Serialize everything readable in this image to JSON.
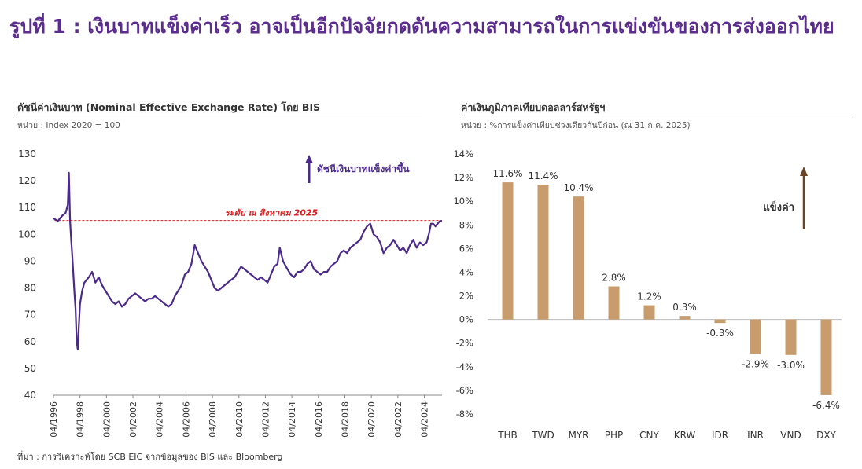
{
  "title": "รูปที่ 1 : เงินบาทแข็งค่าเร็ว อาจเป็นอีกปัจจัยกดดันความสามารถในการแข่งขันของการส่งออกไทย",
  "source": "ที่มา : การวิเคราะห์โดย SCB EIC จากข้อมูลของ BIS และ Bloomberg",
  "colors": {
    "title": "#5b2d8e",
    "neer_line": "#4b2a8c",
    "bar": "#c99c6e",
    "arrow": "#6b4423",
    "ref_line": "#e02020"
  },
  "chart_data": [
    {
      "type": "line",
      "title": "ดัชนีค่าเงินบาท (Nominal Effective Exchange Rate) โดย BIS",
      "subtitle": "หน่วย : Index 2020 = 100",
      "xlabel": "",
      "ylabel": "",
      "ylim": [
        40,
        130
      ],
      "yticks": [
        40,
        50,
        60,
        70,
        80,
        90,
        100,
        110,
        120,
        130
      ],
      "xlim": [
        "1996-04",
        "2025-08"
      ],
      "xtick_labels": [
        "04/1996",
        "04/1998",
        "04/2000",
        "04/2002",
        "04/2004",
        "04/2006",
        "04/2008",
        "04/2010",
        "04/2012",
        "04/2014",
        "04/2016",
        "04/2018",
        "04/2020",
        "04/2022",
        "04/2024"
      ],
      "grid": false,
      "series": [
        {
          "color": "#4b2a8c",
          "x": [
            "1996-04",
            "1996-08",
            "1996-12",
            "1997-03",
            "1997-05",
            "1997-06",
            "1997-07",
            "1997-08",
            "1997-09",
            "1997-10",
            "1997-11",
            "1997-12",
            "1998-01",
            "1998-02",
            "1998-03",
            "1998-04",
            "1998-06",
            "1998-08",
            "1998-10",
            "1998-12",
            "1999-03",
            "1999-06",
            "1999-09",
            "1999-12",
            "2000-03",
            "2000-06",
            "2000-09",
            "2000-12",
            "2001-03",
            "2001-06",
            "2001-09",
            "2001-12",
            "2002-03",
            "2002-06",
            "2002-09",
            "2002-12",
            "2003-03",
            "2003-06",
            "2003-09",
            "2003-12",
            "2004-03",
            "2004-06",
            "2004-09",
            "2004-12",
            "2005-03",
            "2005-06",
            "2005-09",
            "2005-12",
            "2006-03",
            "2006-06",
            "2006-09",
            "2006-12",
            "2007-03",
            "2007-06",
            "2007-09",
            "2007-12",
            "2008-03",
            "2008-06",
            "2008-09",
            "2008-12",
            "2009-03",
            "2009-06",
            "2009-09",
            "2009-12",
            "2010-03",
            "2010-06",
            "2010-09",
            "2010-12",
            "2011-03",
            "2011-06",
            "2011-09",
            "2011-12",
            "2012-03",
            "2012-06",
            "2012-09",
            "2012-12",
            "2013-03",
            "2013-05",
            "2013-08",
            "2013-12",
            "2014-03",
            "2014-06",
            "2014-09",
            "2014-12",
            "2015-03",
            "2015-06",
            "2015-09",
            "2015-12",
            "2016-03",
            "2016-06",
            "2016-09",
            "2016-12",
            "2017-03",
            "2017-06",
            "2017-09",
            "2017-12",
            "2018-03",
            "2018-06",
            "2018-09",
            "2018-12",
            "2019-03",
            "2019-06",
            "2019-09",
            "2019-12",
            "2020-03",
            "2020-06",
            "2020-09",
            "2020-12",
            "2021-03",
            "2021-06",
            "2021-09",
            "2021-12",
            "2022-03",
            "2022-06",
            "2022-09",
            "2022-12",
            "2023-03",
            "2023-06",
            "2023-09",
            "2023-12",
            "2024-03",
            "2024-06",
            "2024-08",
            "2024-10",
            "2024-12",
            "2025-02",
            "2025-04",
            "2025-06",
            "2025-08"
          ],
          "values": [
            106,
            105,
            107,
            108,
            111,
            123,
            105,
            98,
            92,
            85,
            78,
            72,
            60,
            57,
            66,
            74,
            79,
            82,
            83,
            84,
            86,
            82,
            84,
            81,
            79,
            77,
            75,
            74,
            75,
            73,
            74,
            76,
            77,
            78,
            77,
            76,
            75,
            76,
            76,
            77,
            76,
            75,
            74,
            73,
            74,
            77,
            79,
            81,
            85,
            86,
            89,
            96,
            93,
            90,
            88,
            86,
            83,
            80,
            79,
            80,
            81,
            82,
            83,
            84,
            86,
            88,
            87,
            86,
            85,
            84,
            83,
            84,
            83,
            82,
            85,
            88,
            89,
            95,
            90,
            87,
            85,
            84,
            86,
            86,
            87,
            89,
            90,
            87,
            86,
            85,
            86,
            86,
            88,
            89,
            90,
            93,
            94,
            93,
            95,
            96,
            97,
            98,
            101,
            103,
            104,
            100,
            99,
            97,
            93,
            95,
            96,
            98,
            96,
            94,
            95,
            93,
            96,
            98,
            95,
            97,
            96,
            97,
            100,
            104,
            104,
            103,
            104,
            105,
            105
          ]
        }
      ],
      "annotations": [
        {
          "text": "ดัชนีเงินบาทแข็งค่าขึ้น"
        },
        {
          "text": "ระดับ ณ สิงหาคม 2025",
          "value": 105.2
        }
      ]
    },
    {
      "type": "bar",
      "title": "ค่าเงินภูมิภาคเทียบดอลลาร์สหรัฐฯ",
      "subtitle": "หน่วย : %การแข็งค่าเทียบช่วงเดียวกันปีก่อน (ณ 31 ก.ค. 2025)",
      "xlabel": "",
      "ylabel": "",
      "ylim": [
        -8,
        14
      ],
      "yticks": [
        -8,
        -6,
        -4,
        -2,
        0,
        2,
        4,
        6,
        8,
        10,
        12,
        14
      ],
      "ytick_labels": [
        "-8%",
        "-6%",
        "-4%",
        "-2%",
        "0%",
        "2%",
        "4%",
        "6%",
        "8%",
        "10%",
        "12%",
        "14%"
      ],
      "grid": false,
      "categories": [
        "THB",
        "TWD",
        "MYR",
        "PHP",
        "CNY",
        "KRW",
        "IDR",
        "INR",
        "VND",
        "DXY"
      ],
      "values": [
        11.6,
        11.4,
        10.4,
        2.8,
        1.2,
        0.3,
        -0.3,
        -2.9,
        -3.0,
        -6.4
      ],
      "labels": [
        "11.6%",
        "11.4%",
        "10.4%",
        "2.8%",
        "1.2%",
        "0.3%",
        "-0.3%",
        "-2.9%",
        "-3.0%",
        "-6.4%"
      ],
      "annotations": [
        {
          "text": "แข็งค่า"
        }
      ]
    }
  ]
}
